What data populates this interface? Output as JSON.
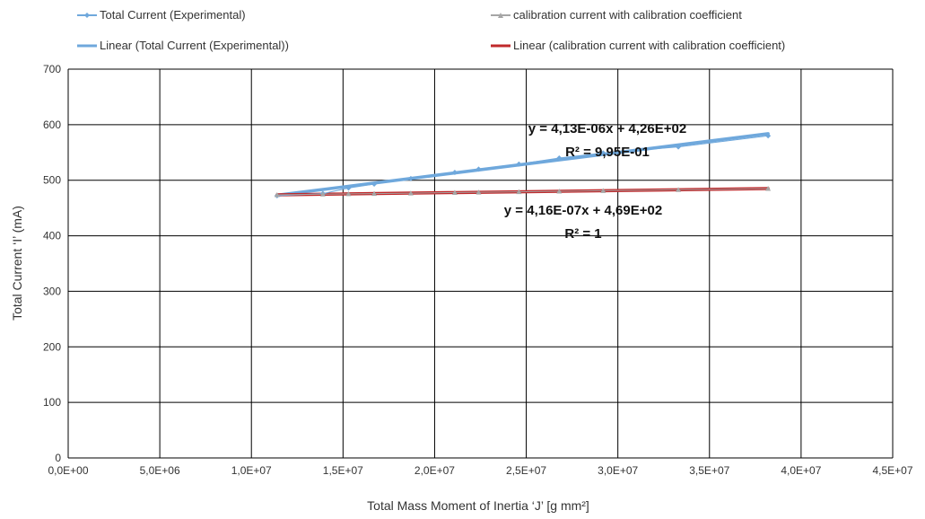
{
  "chart_data": {
    "type": "scatter",
    "title": "",
    "xlabel": "Total Mass Moment of Inertia ‘J’ [g mm²]",
    "ylabel": "Total Current ‘I’ (mA)",
    "xlim": [
      0,
      45000000
    ],
    "ylim": [
      0,
      700
    ],
    "x_ticks": [
      0,
      5000000,
      10000000,
      15000000,
      20000000,
      25000000,
      30000000,
      35000000,
      40000000,
      45000000
    ],
    "x_tick_labels": [
      "0,0E+00",
      "5,0E+06",
      "1,0E+07",
      "1,5E+07",
      "2,0E+07",
      "2,5E+07",
      "3,0E+07",
      "3,5E+07",
      "4,0E+07",
      "4,5E+07"
    ],
    "y_ticks": [
      0,
      100,
      200,
      300,
      400,
      500,
      600,
      700
    ],
    "y_tick_labels": [
      "0",
      "100",
      "200",
      "300",
      "400",
      "500",
      "600",
      "700"
    ],
    "grid": true,
    "legend_position": "top",
    "series": [
      {
        "name": "Total Current (Experimental)",
        "color": "#6fa8dc",
        "marker": "diamond",
        "points": [
          [
            11400000,
            472
          ],
          [
            13900000,
            476
          ],
          [
            15300000,
            486
          ],
          [
            16700000,
            493
          ],
          [
            18700000,
            503
          ],
          [
            21100000,
            514
          ],
          [
            22400000,
            520
          ],
          [
            24600000,
            529
          ],
          [
            26800000,
            540
          ],
          [
            29200000,
            549
          ],
          [
            33300000,
            560
          ],
          [
            38200000,
            580
          ]
        ]
      },
      {
        "name": "calibration current with calibration coefficient",
        "color": "#a6a6a6",
        "marker": "triangle",
        "points": [
          [
            11400000,
            473.7
          ],
          [
            13900000,
            474.8
          ],
          [
            15300000,
            475.4
          ],
          [
            16700000,
            475.9
          ],
          [
            18700000,
            476.8
          ],
          [
            21100000,
            477.8
          ],
          [
            22400000,
            478.3
          ],
          [
            24600000,
            479.2
          ],
          [
            26800000,
            480.1
          ],
          [
            29200000,
            481.1
          ],
          [
            33300000,
            482.9
          ],
          [
            38200000,
            484.9
          ]
        ]
      }
    ],
    "trendlines": [
      {
        "name": "Linear (Total Current (Experimental))",
        "color": "#6fa8dc",
        "slope": 4.13e-06,
        "intercept": 426,
        "x_range": [
          11400000,
          38200000
        ],
        "equation": "y = 4,13E-06x + 4,26E+02",
        "r2": "R² = 9,95E-01"
      },
      {
        "name": "Linear (calibration current with calibration coefficient)",
        "color": "#c0292b",
        "slope": 4.16e-07,
        "intercept": 469,
        "x_range": [
          11400000,
          38200000
        ],
        "equation": "y = 4,16E-07x + 4,69E+02",
        "r2": "R² = 1"
      }
    ]
  }
}
